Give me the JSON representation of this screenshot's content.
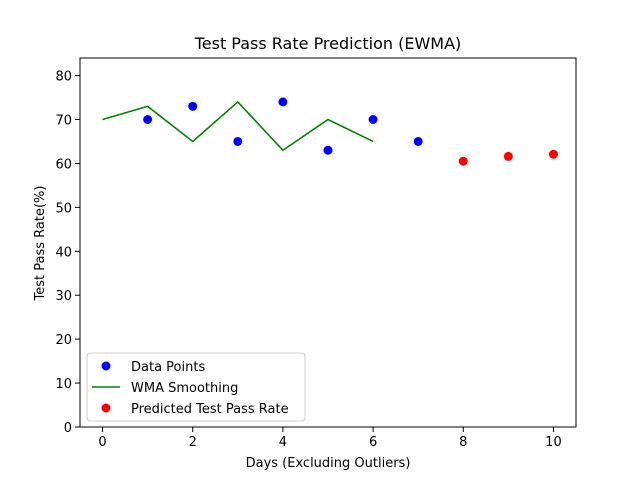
{
  "chart_data": {
    "type": "scatter",
    "title": "Test Pass Rate Prediction (EWMA)",
    "xlabel": "Days (Excluding Outliers)",
    "ylabel": "Test Pass Rate(%)",
    "xlim": [
      -0.5,
      10.5
    ],
    "ylim": [
      0,
      84
    ],
    "xticks": [
      0,
      2,
      4,
      6,
      8,
      10
    ],
    "yticks": [
      0,
      10,
      20,
      30,
      40,
      50,
      60,
      70,
      80
    ],
    "grid": false,
    "legend_position": "lower-left",
    "series": [
      {
        "name": "Data Points",
        "kind": "scatter",
        "color": "#0000ff",
        "x": [
          1,
          2,
          3,
          4,
          5,
          6,
          7
        ],
        "y": [
          70,
          73,
          65,
          74,
          63,
          70,
          65
        ]
      },
      {
        "name": "WMA Smoothing",
        "kind": "line",
        "color": "#008000",
        "x": [
          0,
          1,
          2,
          3,
          4,
          5,
          6
        ],
        "y": [
          70,
          73,
          65,
          74,
          63,
          70,
          65
        ]
      },
      {
        "name": "Predicted Test Pass Rate",
        "kind": "scatter",
        "color": "#ff0000",
        "x": [
          8,
          9,
          10
        ],
        "y": [
          60.5,
          61.6,
          62.1
        ]
      }
    ]
  }
}
